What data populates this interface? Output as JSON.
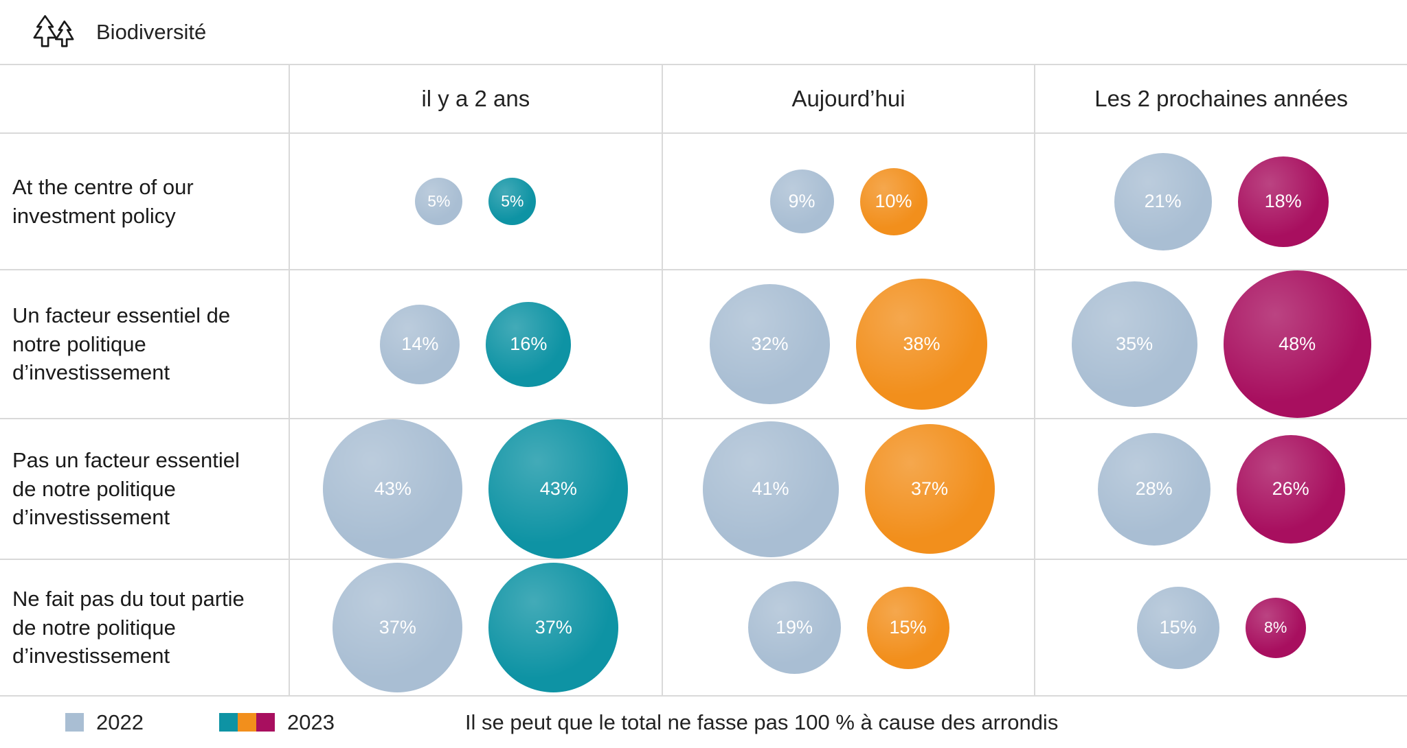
{
  "header": {
    "title": "Biodiversité",
    "icon": "pine-trees-icon"
  },
  "columns": [
    {
      "id": "two_years_ago",
      "label": "il y a 2 ans",
      "color_2023": "#0e93a4"
    },
    {
      "id": "today",
      "label": "Aujourd’hui",
      "color_2023": "#f28f1c"
    },
    {
      "id": "next_two_years",
      "label": "Les 2 prochaines années",
      "color_2023": "#a80f5f"
    }
  ],
  "rows": [
    {
      "label": "At the centre of our investment policy",
      "cells": [
        {
          "y2022": 5,
          "y2023": 5
        },
        {
          "y2022": 9,
          "y2023": 10
        },
        {
          "y2022": 21,
          "y2023": 18
        }
      ]
    },
    {
      "label": "Un facteur essentiel de notre politique d’investissement",
      "cells": [
        {
          "y2022": 14,
          "y2023": 16
        },
        {
          "y2022": 32,
          "y2023": 38
        },
        {
          "y2022": 35,
          "y2023": 48
        }
      ]
    },
    {
      "label": "Pas un facteur essentiel de notre politique d’investissement",
      "cells": [
        {
          "y2022": 43,
          "y2023": 43
        },
        {
          "y2022": 41,
          "y2023": 37
        },
        {
          "y2022": 28,
          "y2023": 26
        }
      ]
    },
    {
      "label": "Ne fait pas du tout partie de notre politique d’investissement",
      "cells": [
        {
          "y2022": 37,
          "y2023": 37
        },
        {
          "y2022": 19,
          "y2023": 15
        },
        {
          "y2022": 15,
          "y2023": 8
        }
      ]
    }
  ],
  "colors": {
    "y2022": "#a9bed3",
    "grid": "#d9d9d9",
    "text": "#1a1a1a"
  },
  "legend": {
    "y2022_label": "2022",
    "y2023_label": "2023",
    "note": "Il se peut que le total ne fasse pas 100 % à cause des arrondis"
  },
  "chart_data": {
    "type": "bubble",
    "title": "Biodiversité",
    "unit": "%",
    "categories": [
      "il y a 2 ans",
      "Aujourd’hui",
      "Les 2 prochaines années"
    ],
    "row_labels": [
      "At the centre of our investment policy",
      "Un facteur essentiel de notre politique d’investissement",
      "Pas un facteur essentiel de notre politique d’investissement",
      "Ne fait pas du tout partie de notre politique d’investissement"
    ],
    "series": [
      {
        "name": "2022",
        "values": [
          [
            5,
            9,
            21
          ],
          [
            14,
            32,
            35
          ],
          [
            43,
            41,
            28
          ],
          [
            37,
            19,
            15
          ]
        ]
      },
      {
        "name": "2023",
        "values": [
          [
            5,
            10,
            18
          ],
          [
            16,
            38,
            48
          ],
          [
            43,
            37,
            26
          ],
          [
            37,
            15,
            8
          ]
        ]
      }
    ],
    "series_colors": {
      "2022": "#a9bed3",
      "2023_by_category": [
        "#0e93a4",
        "#f28f1c",
        "#a80f5f"
      ]
    },
    "note": "Il se peut que le total ne fasse pas 100 % à cause des arrondis",
    "legend_position": "bottom",
    "grid": true
  }
}
